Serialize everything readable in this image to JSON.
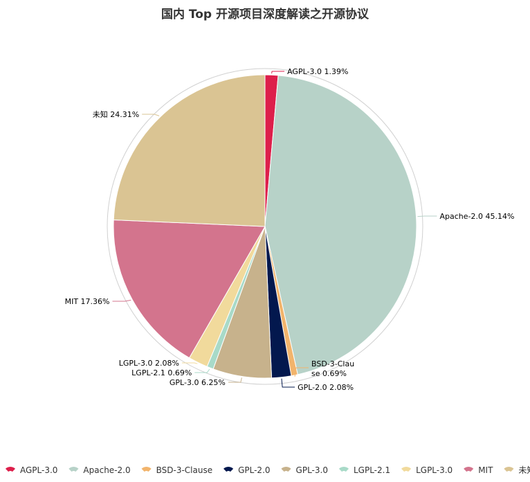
{
  "chart_data": {
    "type": "pie",
    "title": "国内 Top 开源项目深度解读之开源协议",
    "slices": [
      {
        "name": "AGPL-3.0",
        "value": 1.39,
        "label": "AGPL-3.0 1.39%",
        "color": "#dd1f4b"
      },
      {
        "name": "Apache-2.0",
        "value": 45.14,
        "label": "Apache-2.0 45.14%",
        "color": "#b7d2c8"
      },
      {
        "name": "BSD-3-Clause",
        "value": 0.69,
        "label": "BSD-3-Clause 0.69%",
        "label_lines": [
          "BSD-3-Clau",
          "se 0.69%"
        ],
        "color": "#f2b46c"
      },
      {
        "name": "GPL-2.0",
        "value": 2.08,
        "label": "GPL-2.0 2.08%",
        "color": "#03184e"
      },
      {
        "name": "GPL-3.0",
        "value": 6.25,
        "label": "GPL-3.0 6.25%",
        "color": "#c7b28c"
      },
      {
        "name": "LGPL-2.1",
        "value": 0.69,
        "label": "LGPL-2.1 0.69%",
        "color": "#a8dac8"
      },
      {
        "name": "LGPL-3.0",
        "value": 2.08,
        "label": "LGPL-3.0 2.08%",
        "color": "#f1da9c"
      },
      {
        "name": "MIT",
        "value": 17.36,
        "label": "MIT 17.36%",
        "color": "#d3748d"
      },
      {
        "name": "未知",
        "value": 24.31,
        "label": "未知 24.31%",
        "color": "#dac493"
      }
    ],
    "legend": {
      "position": "bottom",
      "items": [
        "AGPL-3.0",
        "Apache-2.0",
        "BSD-3-Clause",
        "GPL-2.0",
        "GPL-3.0",
        "LGPL-2.1",
        "LGPL-3.0",
        "MIT",
        "未知"
      ]
    }
  }
}
